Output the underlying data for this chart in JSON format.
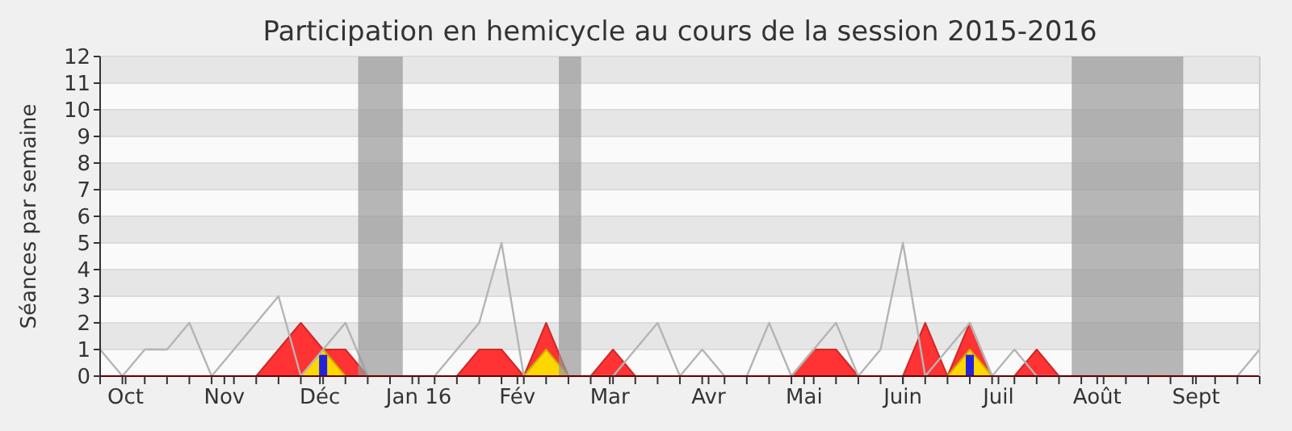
{
  "chart_data": {
    "type": "area",
    "title": "Participation en hemicycle au cours de la session 2015-2016",
    "ylabel": "Séances par semaine",
    "x": [
      "2015-09-23",
      "2015-09-30",
      "2015-10-07",
      "2015-10-14",
      "2015-10-21",
      "2015-10-28",
      "2015-11-04",
      "2015-11-11",
      "2015-11-18",
      "2015-11-25",
      "2015-12-02",
      "2015-12-09",
      "2015-12-16",
      "2015-12-23",
      "2015-12-30",
      "2016-01-06",
      "2016-01-13",
      "2016-01-20",
      "2016-01-27",
      "2016-02-03",
      "2016-02-10",
      "2016-02-17",
      "2016-02-24",
      "2016-03-02",
      "2016-03-09",
      "2016-03-16",
      "2016-03-23",
      "2016-03-30",
      "2016-04-06",
      "2016-04-13",
      "2016-04-20",
      "2016-04-27",
      "2016-05-04",
      "2016-05-11",
      "2016-05-18",
      "2016-05-25",
      "2016-06-01",
      "2016-06-08",
      "2016-06-15",
      "2016-06-22",
      "2016-06-29",
      "2016-07-06",
      "2016-07-13",
      "2016-07-20",
      "2016-07-27",
      "2016-08-03",
      "2016-08-10",
      "2016-08-17",
      "2016-08-24",
      "2016-08-31",
      "2016-09-07",
      "2016-09-14",
      "2016-09-21"
    ],
    "xlim": [
      "2015-09-23",
      "2016-09-21"
    ],
    "ylim": [
      0,
      12
    ],
    "yticks": [
      0,
      1,
      2,
      3,
      4,
      5,
      6,
      7,
      8,
      9,
      10,
      11,
      12
    ],
    "xticks": [
      {
        "value": "2015-09-23",
        "label": null
      },
      {
        "value": "2015-09-30",
        "label": null
      },
      {
        "value": "2015-10-07",
        "label": null
      },
      {
        "value": "2015-10-14",
        "label": null
      },
      {
        "value": "2015-10-21",
        "label": null
      },
      {
        "value": "2015-10-28",
        "label": null
      },
      {
        "value": "2015-11-04",
        "label": null
      },
      {
        "value": "2015-11-11",
        "label": null
      },
      {
        "value": "2015-11-18",
        "label": null
      },
      {
        "value": "2015-11-25",
        "label": null
      },
      {
        "value": "2015-12-02",
        "label": null
      },
      {
        "value": "2015-12-09",
        "label": null
      },
      {
        "value": "2015-12-16",
        "label": null
      },
      {
        "value": "2015-12-23",
        "label": null
      },
      {
        "value": "2015-12-30",
        "label": null
      },
      {
        "value": "2016-01-06",
        "label": null
      },
      {
        "value": "2016-01-13",
        "label": null
      },
      {
        "value": "2016-01-20",
        "label": null
      },
      {
        "value": "2016-01-27",
        "label": null
      },
      {
        "value": "2016-02-03",
        "label": null
      },
      {
        "value": "2016-02-10",
        "label": null
      },
      {
        "value": "2016-02-17",
        "label": null
      },
      {
        "value": "2016-02-24",
        "label": null
      },
      {
        "value": "2016-03-02",
        "label": null
      },
      {
        "value": "2016-03-09",
        "label": null
      },
      {
        "value": "2016-03-16",
        "label": null
      },
      {
        "value": "2016-03-23",
        "label": null
      },
      {
        "value": "2016-03-30",
        "label": null
      },
      {
        "value": "2016-04-06",
        "label": null
      },
      {
        "value": "2016-04-13",
        "label": null
      },
      {
        "value": "2016-04-20",
        "label": null
      },
      {
        "value": "2016-04-27",
        "label": null
      },
      {
        "value": "2016-05-04",
        "label": null
      },
      {
        "value": "2016-05-11",
        "label": null
      },
      {
        "value": "2016-05-18",
        "label": null
      },
      {
        "value": "2016-05-25",
        "label": null
      },
      {
        "value": "2016-06-01",
        "label": null
      },
      {
        "value": "2016-06-08",
        "label": null
      },
      {
        "value": "2016-06-15",
        "label": null
      },
      {
        "value": "2016-06-22",
        "label": null
      },
      {
        "value": "2016-06-29",
        "label": null
      },
      {
        "value": "2016-07-06",
        "label": null
      },
      {
        "value": "2016-07-13",
        "label": null
      },
      {
        "value": "2016-07-20",
        "label": null
      },
      {
        "value": "2016-07-27",
        "label": null
      },
      {
        "value": "2016-08-03",
        "label": null
      },
      {
        "value": "2016-08-10",
        "label": null
      },
      {
        "value": "2016-08-17",
        "label": null
      },
      {
        "value": "2016-08-24",
        "label": null
      },
      {
        "value": "2016-08-31",
        "label": null
      },
      {
        "value": "2016-09-07",
        "label": null
      },
      {
        "value": "2016-09-14",
        "label": null
      },
      {
        "value": "2016-09-21",
        "label": null
      },
      {
        "value": "2015-10-01",
        "label": "Oct"
      },
      {
        "value": "2015-11-01",
        "label": "Nov"
      },
      {
        "value": "2015-12-01",
        "label": "Déc"
      },
      {
        "value": "2016-01-01",
        "label": "Jan 16"
      },
      {
        "value": "2016-02-01",
        "label": "Fév"
      },
      {
        "value": "2016-03-01",
        "label": "Mar"
      },
      {
        "value": "2016-04-01",
        "label": "Avr"
      },
      {
        "value": "2016-05-01",
        "label": "Mai"
      },
      {
        "value": "2016-06-01",
        "label": "Juin"
      },
      {
        "value": "2016-07-01",
        "label": "Juil"
      },
      {
        "value": "2016-08-01",
        "label": "Août"
      },
      {
        "value": "2016-09-01",
        "label": "Sept"
      }
    ],
    "grid": "y",
    "bands": [
      {
        "axis": "x",
        "from": "2015-12-13",
        "to": "2015-12-27",
        "color": "#999999"
      },
      {
        "axis": "x",
        "from": "2016-02-14",
        "to": "2016-02-21",
        "color": "#999999"
      },
      {
        "axis": "x",
        "from": "2016-07-24",
        "to": "2016-08-28",
        "color": "#999999"
      }
    ],
    "series": [
      {
        "color": "#ff3333",
        "values": [
          0,
          0,
          0,
          0,
          0,
          0,
          0,
          0,
          1,
          2,
          1,
          1,
          0,
          0,
          0,
          0,
          0,
          1,
          1,
          0,
          2,
          0,
          0,
          1,
          0,
          0,
          0,
          0,
          0,
          0,
          0,
          0,
          1,
          1,
          0,
          0,
          0,
          2,
          0,
          2,
          0,
          0,
          1,
          0,
          0,
          0,
          0,
          0,
          0,
          0,
          0,
          0,
          0
        ]
      },
      {
        "color": "#ffd700",
        "values": [
          0,
          0,
          0,
          0,
          0,
          0,
          0,
          0,
          0,
          0,
          1,
          0,
          0,
          0,
          0,
          0,
          0,
          0,
          0,
          0,
          1,
          0,
          0,
          0,
          0,
          0,
          0,
          0,
          0,
          0,
          0,
          0,
          0,
          0,
          0,
          0,
          0,
          0,
          0,
          1,
          0,
          0,
          0,
          0,
          0,
          0,
          0,
          0,
          0,
          0,
          0,
          0,
          0
        ]
      },
      {
        "type": "bar",
        "color": "#2222dd",
        "values": [
          null,
          null,
          null,
          null,
          null,
          null,
          null,
          null,
          null,
          null,
          0.8,
          null,
          null,
          null,
          null,
          null,
          null,
          null,
          null,
          null,
          null,
          null,
          null,
          null,
          null,
          null,
          null,
          null,
          null,
          null,
          null,
          null,
          null,
          null,
          null,
          null,
          null,
          null,
          null,
          0.8,
          null,
          null,
          null,
          null,
          null,
          null,
          null,
          null,
          null,
          null,
          null,
          null,
          null
        ]
      },
      {
        "type": "line",
        "color": "#b4b4b4",
        "values": [
          1,
          0,
          1,
          1,
          2,
          0,
          1,
          2,
          3,
          0,
          1,
          2,
          0,
          0,
          0,
          0,
          1,
          2,
          5,
          0,
          0,
          0,
          0,
          0,
          1,
          2,
          0,
          1,
          0,
          0,
          2,
          0,
          1,
          2,
          0,
          1,
          5,
          0,
          1,
          2,
          0,
          1,
          0,
          0,
          0,
          0,
          0,
          0,
          0,
          0,
          0,
          0,
          1
        ]
      }
    ]
  }
}
